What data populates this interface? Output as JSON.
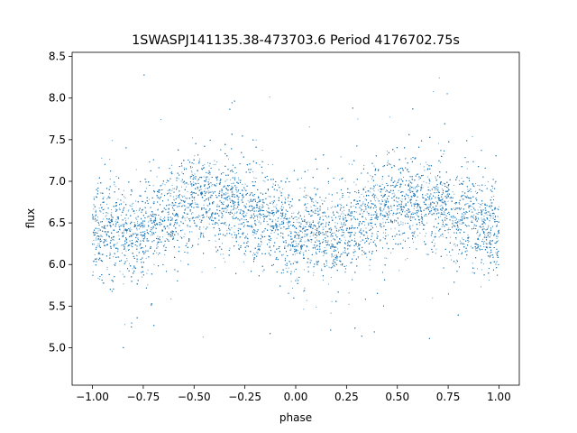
{
  "chart_data": {
    "type": "scatter",
    "title": "1SWASPJ141135.38-473703.6 Period 4176702.75s",
    "xlabel": "phase",
    "ylabel": "flux",
    "xlim": [
      -1.1,
      1.1
    ],
    "ylim": [
      4.55,
      8.55
    ],
    "x_ticks": [
      -1.0,
      -0.75,
      -0.5,
      -0.25,
      0.0,
      0.25,
      0.5,
      0.75,
      1.0
    ],
    "x_tick_labels": [
      "−1.00",
      "−0.75",
      "−0.50",
      "−0.25",
      "0.00",
      "0.25",
      "0.50",
      "0.75",
      "1.00"
    ],
    "y_ticks": [
      5.0,
      5.5,
      6.0,
      6.5,
      7.0,
      7.5,
      8.0,
      8.5
    ],
    "y_tick_labels": [
      "5.0",
      "5.5",
      "6.0",
      "6.5",
      "7.0",
      "7.5",
      "8.0",
      "8.5"
    ],
    "grid": false,
    "marker_color": "#1f77b4",
    "series": [
      {
        "x_range": [
          -1.0,
          1.0
        ],
        "trend": {
          "phase": [
            -1.0,
            -0.9,
            -0.8,
            -0.7,
            -0.6,
            -0.5,
            -0.4,
            -0.3,
            -0.2,
            -0.1,
            0.0,
            0.1,
            0.2,
            0.3,
            0.4,
            0.5,
            0.6,
            0.7,
            0.8,
            0.9,
            1.0
          ],
          "flux": [
            6.4,
            6.4,
            6.3,
            6.5,
            6.65,
            6.8,
            6.75,
            6.7,
            6.6,
            6.5,
            6.35,
            6.4,
            6.3,
            6.5,
            6.65,
            6.8,
            6.75,
            6.7,
            6.6,
            6.5,
            6.35
          ]
        },
        "flux_min": 4.75,
        "flux_max": 8.35,
        "n_points": 14000
      }
    ]
  }
}
